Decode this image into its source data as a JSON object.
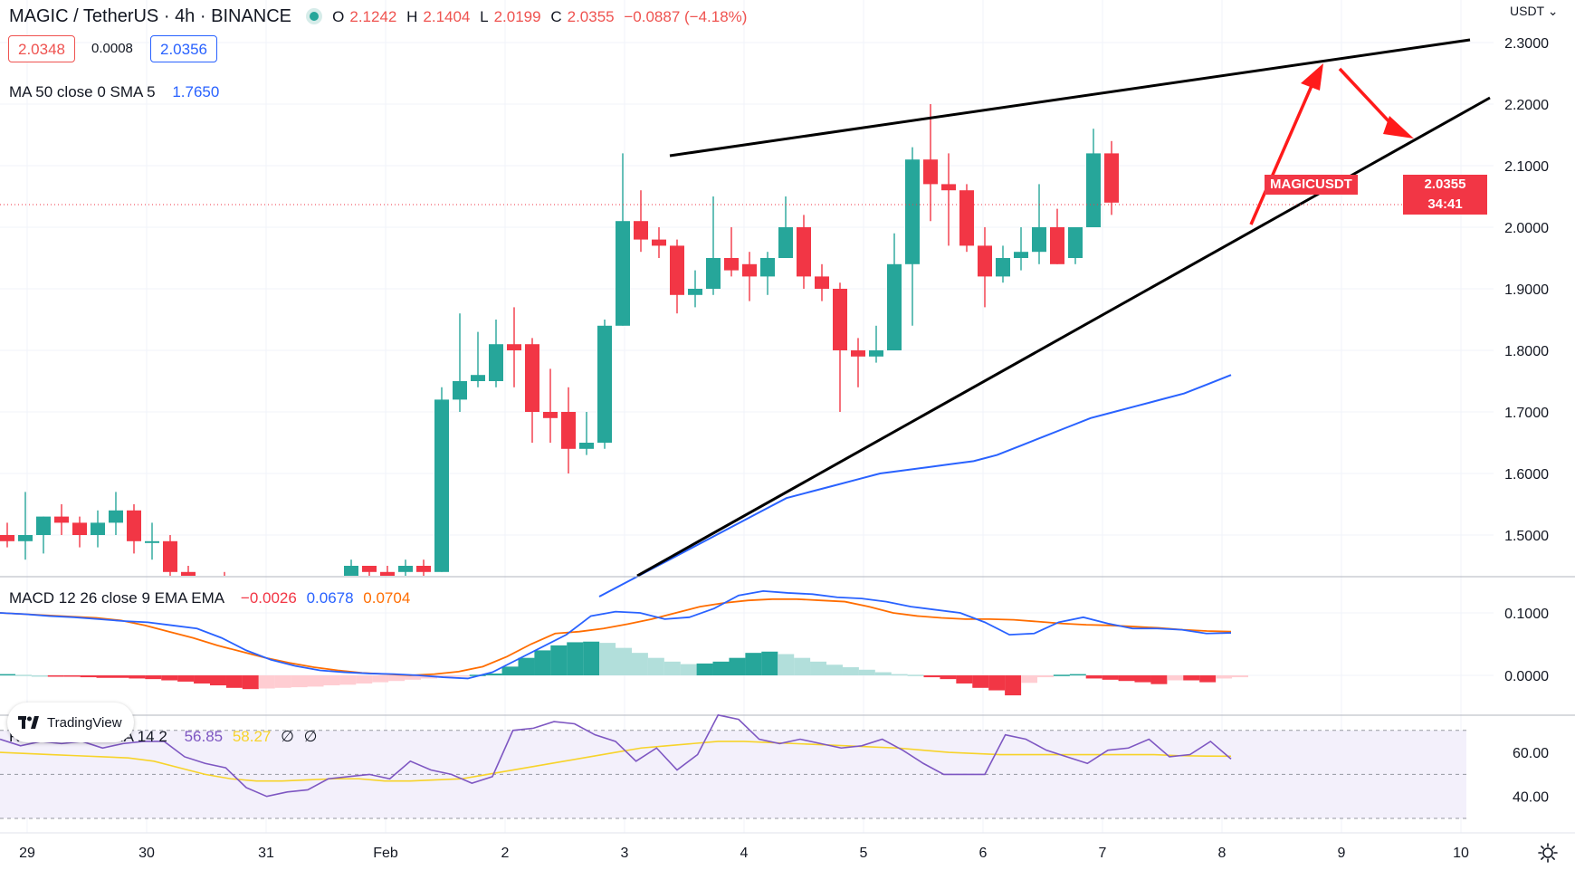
{
  "header": {
    "symbol": "MAGIC",
    "separator": "/",
    "quote": "TetherUS",
    "interval": "4h",
    "exchange": "BINANCE",
    "ohlc": {
      "o_label": "O",
      "o": "2.1242",
      "h_label": "H",
      "h": "2.1404",
      "l_label": "L",
      "l": "2.0199",
      "c_label": "C",
      "c": "2.0355",
      "change": "−0.0887 (−4.18%)"
    },
    "bid": "2.0348",
    "spread": "0.0008",
    "ask": "2.0356"
  },
  "indicators": {
    "ma": {
      "label": "MA 50 close 0 SMA 5",
      "value": "1.7650",
      "color": "#2962ff"
    },
    "macd": {
      "label": "MACD 12 26 close 9 EMA EMA",
      "hist": "−0.0026",
      "macd": "0.0678",
      "signal": "0.0704",
      "macd_color": "#2962ff",
      "signal_color": "#ff6d00"
    },
    "rsi": {
      "label": "RSI 14 close SMA 14 2",
      "rsi": "56.85",
      "sma": "58.27",
      "empty1": "∅",
      "empty2": "∅",
      "rsi_color": "#7e57c2",
      "sma_color": "#f7d32a"
    }
  },
  "price_axis": {
    "currency": "USDT",
    "ticks": [
      "2.3000",
      "2.2000",
      "2.1000",
      "2.0000",
      "1.9000",
      "1.8000",
      "1.7000",
      "1.6000",
      "1.5000"
    ],
    "current_symbol": "MAGICUSDT",
    "current_price": "2.0355",
    "countdown": "34:41"
  },
  "macd_axis": {
    "ticks": [
      "0.1000",
      "0.0000"
    ]
  },
  "rsi_axis": {
    "ticks": [
      "60.00",
      "40.00"
    ]
  },
  "time_axis": {
    "labels": [
      "29",
      "30",
      "31",
      "Feb",
      "2",
      "3",
      "4",
      "5",
      "6",
      "7",
      "8",
      "9",
      "10"
    ]
  },
  "branding": {
    "logo_text": "TradingView"
  },
  "colors": {
    "up": "#26a69a",
    "down": "#f23645",
    "grid": "#f0f3fa",
    "trendline": "#000000",
    "arrow": "#ff0000"
  },
  "chart_data": {
    "type": "candlestick",
    "ylim": [
      1.44,
      2.32
    ],
    "candles": [
      {
        "o": 1.5,
        "h": 1.52,
        "l": 1.48,
        "c": 1.49
      },
      {
        "o": 1.49,
        "h": 1.57,
        "l": 1.46,
        "c": 1.5
      },
      {
        "o": 1.5,
        "h": 1.53,
        "l": 1.47,
        "c": 1.53
      },
      {
        "o": 1.53,
        "h": 1.55,
        "l": 1.5,
        "c": 1.52
      },
      {
        "o": 1.52,
        "h": 1.53,
        "l": 1.48,
        "c": 1.5
      },
      {
        "o": 1.5,
        "h": 1.54,
        "l": 1.48,
        "c": 1.52
      },
      {
        "o": 1.52,
        "h": 1.57,
        "l": 1.5,
        "c": 1.54
      },
      {
        "o": 1.54,
        "h": 1.55,
        "l": 1.47,
        "c": 1.49
      },
      {
        "o": 1.49,
        "h": 1.52,
        "l": 1.46,
        "c": 1.49
      },
      {
        "o": 1.49,
        "h": 1.5,
        "l": 1.43,
        "c": 1.44
      },
      {
        "o": 1.44,
        "h": 1.45,
        "l": 1.4,
        "c": 1.41
      },
      {
        "o": 1.41,
        "h": 1.43,
        "l": 1.39,
        "c": 1.42
      },
      {
        "o": 1.42,
        "h": 1.44,
        "l": 1.4,
        "c": 1.41
      },
      {
        "o": 1.41,
        "h": 1.43,
        "l": 1.39,
        "c": 1.4
      },
      {
        "o": 1.4,
        "h": 1.42,
        "l": 1.38,
        "c": 1.41
      },
      {
        "o": 1.41,
        "h": 1.43,
        "l": 1.39,
        "c": 1.42
      },
      {
        "o": 1.42,
        "h": 1.43,
        "l": 1.4,
        "c": 1.41
      },
      {
        "o": 1.41,
        "h": 1.43,
        "l": 1.4,
        "c": 1.42
      },
      {
        "o": 1.42,
        "h": 1.43,
        "l": 1.4,
        "c": 1.41
      },
      {
        "o": 1.43,
        "h": 1.46,
        "l": 1.42,
        "c": 1.45
      },
      {
        "o": 1.45,
        "h": 1.45,
        "l": 1.43,
        "c": 1.44
      },
      {
        "o": 1.44,
        "h": 1.45,
        "l": 1.42,
        "c": 1.43
      },
      {
        "o": 1.44,
        "h": 1.46,
        "l": 1.43,
        "c": 1.45
      },
      {
        "o": 1.45,
        "h": 1.46,
        "l": 1.43,
        "c": 1.44
      },
      {
        "o": 1.44,
        "h": 1.74,
        "l": 1.44,
        "c": 1.72
      },
      {
        "o": 1.72,
        "h": 1.86,
        "l": 1.7,
        "c": 1.75
      },
      {
        "o": 1.75,
        "h": 1.83,
        "l": 1.74,
        "c": 1.76
      },
      {
        "o": 1.75,
        "h": 1.85,
        "l": 1.74,
        "c": 1.81
      },
      {
        "o": 1.81,
        "h": 1.87,
        "l": 1.74,
        "c": 1.8
      },
      {
        "o": 1.81,
        "h": 1.82,
        "l": 1.65,
        "c": 1.7
      },
      {
        "o": 1.7,
        "h": 1.77,
        "l": 1.65,
        "c": 1.69
      },
      {
        "o": 1.7,
        "h": 1.74,
        "l": 1.6,
        "c": 1.64
      },
      {
        "o": 1.64,
        "h": 1.7,
        "l": 1.63,
        "c": 1.65
      },
      {
        "o": 1.65,
        "h": 1.85,
        "l": 1.64,
        "c": 1.84
      },
      {
        "o": 1.84,
        "h": 2.12,
        "l": 1.84,
        "c": 2.01
      },
      {
        "o": 2.01,
        "h": 2.06,
        "l": 1.96,
        "c": 1.98
      },
      {
        "o": 1.98,
        "h": 2.0,
        "l": 1.95,
        "c": 1.97
      },
      {
        "o": 1.97,
        "h": 1.98,
        "l": 1.86,
        "c": 1.89
      },
      {
        "o": 1.89,
        "h": 1.93,
        "l": 1.87,
        "c": 1.9
      },
      {
        "o": 1.9,
        "h": 2.05,
        "l": 1.89,
        "c": 1.95
      },
      {
        "o": 1.95,
        "h": 2.0,
        "l": 1.92,
        "c": 1.93
      },
      {
        "o": 1.94,
        "h": 1.96,
        "l": 1.88,
        "c": 1.92
      },
      {
        "o": 1.92,
        "h": 1.96,
        "l": 1.89,
        "c": 1.95
      },
      {
        "o": 1.95,
        "h": 2.05,
        "l": 1.95,
        "c": 2.0
      },
      {
        "o": 2.0,
        "h": 2.02,
        "l": 1.9,
        "c": 1.92
      },
      {
        "o": 1.92,
        "h": 1.94,
        "l": 1.88,
        "c": 1.9
      },
      {
        "o": 1.9,
        "h": 1.91,
        "l": 1.7,
        "c": 1.8
      },
      {
        "o": 1.8,
        "h": 1.82,
        "l": 1.74,
        "c": 1.79
      },
      {
        "o": 1.79,
        "h": 1.84,
        "l": 1.78,
        "c": 1.8
      },
      {
        "o": 1.8,
        "h": 1.99,
        "l": 1.8,
        "c": 1.94
      },
      {
        "o": 1.94,
        "h": 2.13,
        "l": 1.84,
        "c": 2.11
      },
      {
        "o": 2.11,
        "h": 2.2,
        "l": 2.01,
        "c": 2.07
      },
      {
        "o": 2.07,
        "h": 2.12,
        "l": 1.97,
        "c": 2.06
      },
      {
        "o": 2.06,
        "h": 2.07,
        "l": 1.96,
        "c": 1.97
      },
      {
        "o": 1.97,
        "h": 2.0,
        "l": 1.87,
        "c": 1.92
      },
      {
        "o": 1.92,
        "h": 1.97,
        "l": 1.91,
        "c": 1.95
      },
      {
        "o": 1.95,
        "h": 2.0,
        "l": 1.93,
        "c": 1.96
      },
      {
        "o": 1.96,
        "h": 2.07,
        "l": 1.94,
        "c": 2.0
      },
      {
        "o": 2.0,
        "h": 2.03,
        "l": 1.94,
        "c": 1.94
      },
      {
        "o": 1.95,
        "h": 2.0,
        "l": 1.94,
        "c": 2.0
      },
      {
        "o": 2.0,
        "h": 2.16,
        "l": 2.0,
        "c": 2.12
      },
      {
        "o": 2.12,
        "h": 2.14,
        "l": 2.02,
        "c": 2.04
      }
    ],
    "ma50": [
      1.4,
      1.42,
      1.44,
      1.46,
      1.48,
      1.5,
      1.52,
      1.54,
      1.56,
      1.57,
      1.58,
      1.59,
      1.6,
      1.605,
      1.61,
      1.615,
      1.62,
      1.63,
      1.645,
      1.66,
      1.675,
      1.69,
      1.7,
      1.71,
      1.72,
      1.73,
      1.745,
      1.76
    ],
    "macd_hist": [
      0.002,
      0.001,
      0.0,
      -0.001,
      -0.002,
      -0.003,
      -0.004,
      -0.004,
      -0.005,
      -0.006,
      -0.008,
      -0.01,
      -0.013,
      -0.016,
      -0.02,
      -0.022,
      -0.021,
      -0.02,
      -0.019,
      -0.018,
      -0.016,
      -0.015,
      -0.013,
      -0.011,
      -0.009,
      -0.007,
      -0.005,
      -0.003,
      -0.001,
      0.001,
      0.003,
      0.014,
      0.028,
      0.04,
      0.048,
      0.053,
      0.054,
      0.052,
      0.044,
      0.036,
      0.028,
      0.022,
      0.018,
      0.019,
      0.022,
      0.028,
      0.036,
      0.038,
      0.034,
      0.028,
      0.022,
      0.017,
      0.013,
      0.009,
      0.005,
      0.002,
      0.001,
      -0.003,
      -0.006,
      -0.013,
      -0.02,
      -0.024,
      -0.032,
      -0.012,
      -0.003,
      0.001,
      0.002,
      -0.005,
      -0.007,
      -0.009,
      -0.011,
      -0.014,
      -0.008,
      -0.008,
      -0.011,
      -0.005,
      -0.003
    ],
    "macd_line": [
      0.1,
      0.098,
      0.095,
      0.093,
      0.09,
      0.087,
      0.085,
      0.08,
      0.075,
      0.06,
      0.04,
      0.025,
      0.015,
      0.008,
      0.005,
      0.003,
      0.002,
      0.0,
      -0.003,
      -0.005,
      0.005,
      0.025,
      0.045,
      0.065,
      0.095,
      0.102,
      0.1,
      0.09,
      0.093,
      0.107,
      0.128,
      0.135,
      0.132,
      0.13,
      0.125,
      0.123,
      0.118,
      0.11,
      0.105,
      0.1,
      0.085,
      0.065,
      0.067,
      0.085,
      0.093,
      0.083,
      0.075,
      0.075,
      0.073,
      0.067,
      0.068
    ],
    "signal_line": [
      0.1,
      0.098,
      0.096,
      0.094,
      0.092,
      0.088,
      0.08,
      0.07,
      0.06,
      0.048,
      0.038,
      0.028,
      0.02,
      0.013,
      0.008,
      0.004,
      0.002,
      0.0,
      0.002,
      0.006,
      0.014,
      0.03,
      0.05,
      0.067,
      0.07,
      0.075,
      0.082,
      0.09,
      0.1,
      0.11,
      0.116,
      0.12,
      0.122,
      0.122,
      0.12,
      0.118,
      0.11,
      0.1,
      0.095,
      0.092,
      0.09,
      0.09,
      0.089,
      0.086,
      0.083,
      0.081,
      0.08,
      0.078,
      0.076,
      0.073,
      0.071,
      0.07
    ],
    "rsi": [
      66,
      63,
      65,
      64,
      65,
      62,
      64,
      65,
      65,
      58,
      55,
      53,
      44,
      40,
      42,
      43,
      48,
      49,
      50,
      48,
      56,
      52,
      50,
      46,
      49,
      70,
      71,
      74,
      73,
      68,
      65,
      56,
      62,
      52,
      59,
      77,
      75,
      66,
      64,
      66,
      64,
      62,
      63,
      66,
      61,
      55,
      50,
      50,
      50,
      68,
      66,
      61,
      58,
      55,
      61,
      62,
      66,
      58,
      59,
      65,
      57
    ],
    "rsi_sma": [
      60,
      59.5,
      59,
      58.5,
      58,
      57.5,
      56,
      53,
      50,
      48,
      47,
      47,
      47.5,
      48,
      48,
      47,
      47,
      47.5,
      48,
      50,
      52,
      54,
      56,
      58,
      60,
      62,
      63,
      64,
      65,
      65,
      64.5,
      64,
      63.5,
      63,
      62.5,
      62,
      61,
      60,
      59.5,
      59,
      59,
      59,
      59,
      59,
      59,
      59,
      58.5,
      58.3,
      58.27
    ]
  }
}
